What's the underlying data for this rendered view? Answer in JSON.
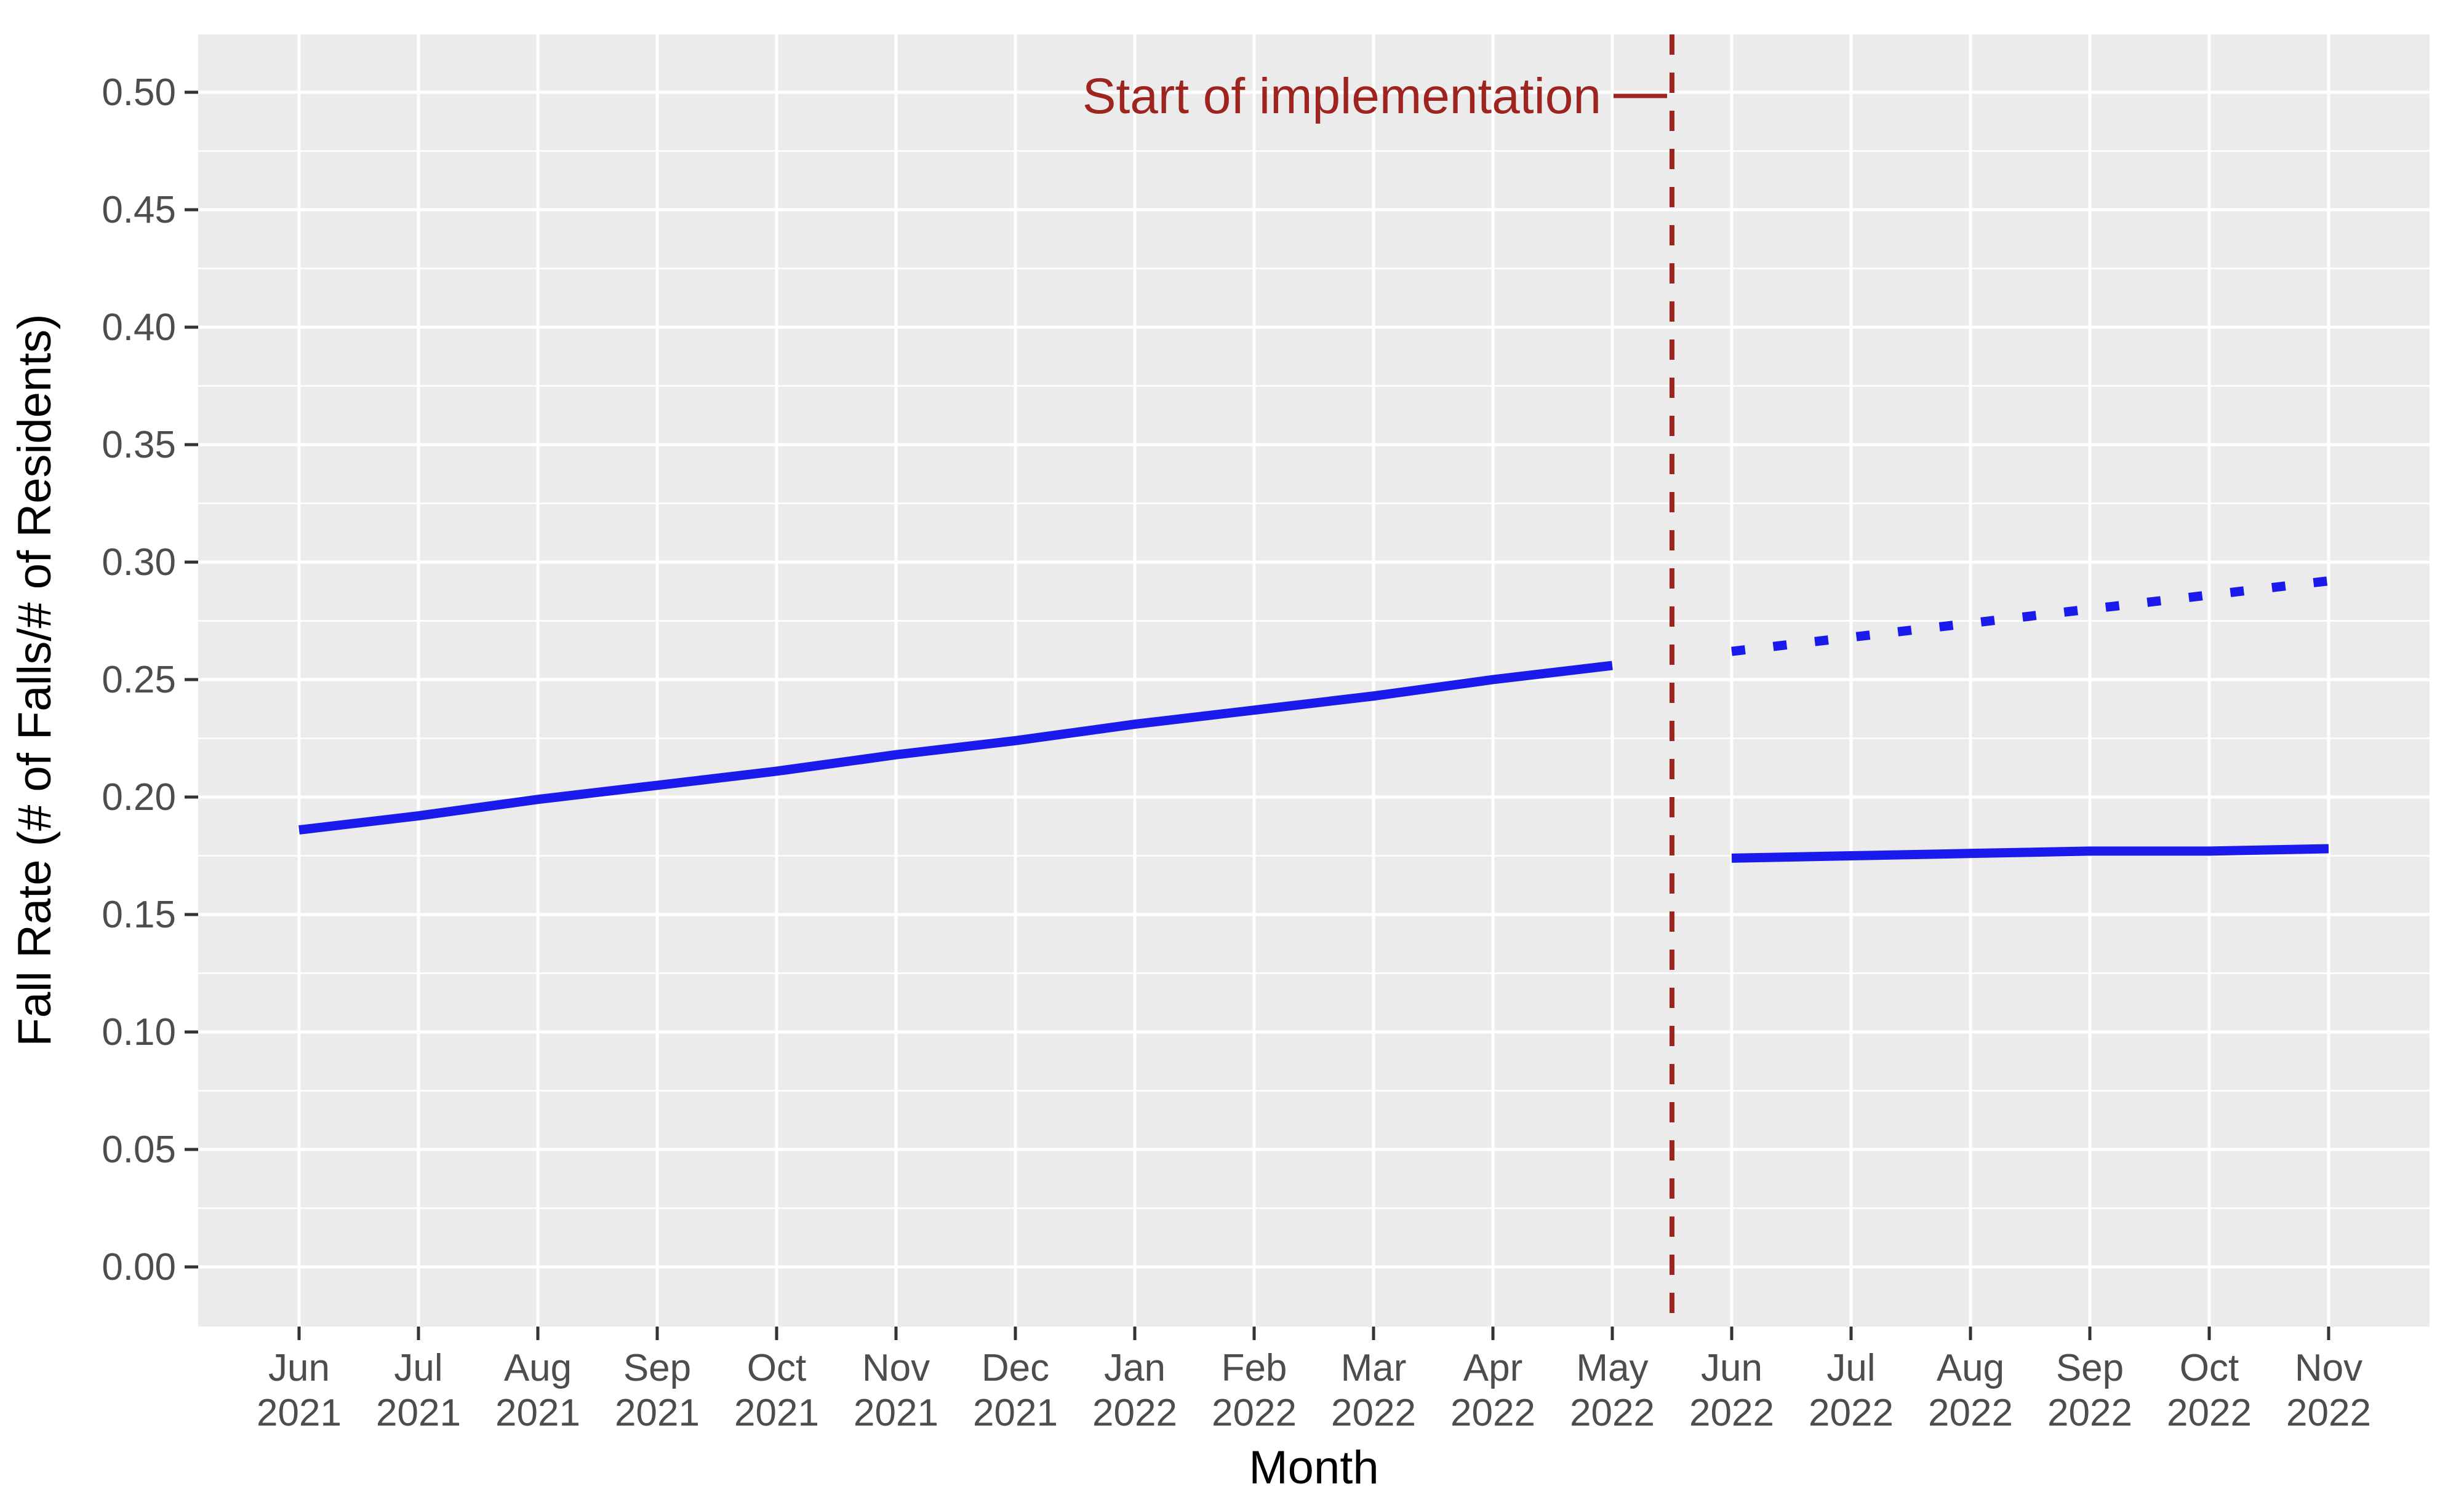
{
  "figure": {
    "background_color": "#ffffff",
    "panel_background_color": "#ebebeb",
    "gridline_color": "#ffffff",
    "axis_text_color": "#4d4d4d",
    "axis_title_color": "#000000",
    "tick_mark_color": "#333333",
    "line_color": "#1a1aec",
    "accent_color": "#9e2420"
  },
  "chart_data": {
    "type": "line",
    "title": "",
    "xlabel": "Month",
    "ylabel": "Fall Rate (# of Falls/# of Residents)",
    "ylim": [
      0,
      0.5
    ],
    "y_tick_labels": [
      "0.00",
      "0.05",
      "0.10",
      "0.15",
      "0.20",
      "0.25",
      "0.30",
      "0.35",
      "0.40",
      "0.45",
      "0.50"
    ],
    "y_minor_step": 0.025,
    "grid": "major-and-minor-horizontal, major-vertical, white on gray panel",
    "legend": "none",
    "x_tick_labels": [
      "Jun 2021",
      "Jul 2021",
      "Aug 2021",
      "Sep 2021",
      "Oct 2021",
      "Nov 2021",
      "Dec 2021",
      "Jan 2022",
      "Feb 2022",
      "Mar 2022",
      "Apr 2022",
      "May 2022",
      "Jun 2022",
      "Jul 2022",
      "Aug 2022",
      "Sep 2022",
      "Oct 2022",
      "Nov 2022"
    ],
    "series": [
      {
        "name": "observed-pre-implementation-trend",
        "line_style": "solid",
        "color": "#1a1aec",
        "x": [
          "Jun 2021",
          "Jul 2021",
          "Aug 2021",
          "Sep 2021",
          "Oct 2021",
          "Nov 2021",
          "Dec 2021",
          "Jan 2022",
          "Feb 2022",
          "Mar 2022",
          "Apr 2022",
          "May 2022"
        ],
        "values": [
          0.186,
          0.192,
          0.199,
          0.205,
          0.211,
          0.218,
          0.224,
          0.231,
          0.237,
          0.243,
          0.25,
          0.256
        ]
      },
      {
        "name": "projected-counterfactual-trend",
        "line_style": "dotted",
        "color": "#1a1aec",
        "x": [
          "Jun 2022",
          "Jul 2022",
          "Aug 2022",
          "Sep 2022",
          "Oct 2022",
          "Nov 2022"
        ],
        "values": [
          0.262,
          0.268,
          0.274,
          0.28,
          0.286,
          0.292
        ]
      },
      {
        "name": "observed-post-implementation-trend",
        "line_style": "solid",
        "color": "#1a1aec",
        "x": [
          "Jun 2022",
          "Jul 2022",
          "Aug 2022",
          "Sep 2022",
          "Oct 2022",
          "Nov 2022"
        ],
        "values": [
          0.174,
          0.175,
          0.176,
          0.177,
          0.177,
          0.178
        ]
      }
    ],
    "vline": {
      "between": [
        "May 2022",
        "Jun 2022"
      ],
      "line_style": "dashed",
      "color": "#9e2420"
    },
    "annotation": {
      "text": "Start of implementation",
      "color": "#9e2420",
      "position": "top, left of dashed vline, with leader line"
    }
  }
}
